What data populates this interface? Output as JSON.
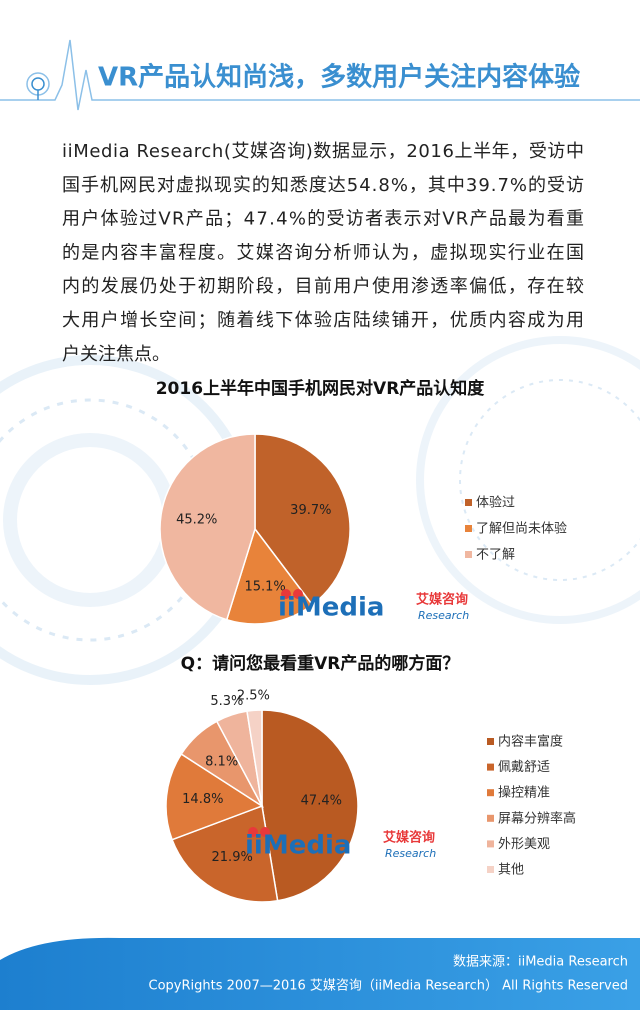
{
  "header": {
    "title": "VR产品认知尚浅，多数用户关注内容体验"
  },
  "paragraph": {
    "lines": [
      "iiMedia Research(艾媒咨询)数据显示，2016上半年，受访中",
      "国手机网民对虚拟现实的知悉度达54.8%，其中39.7%的受访",
      "用户体验过VR产品；47.4%的受访者表示对VR产品最为看重",
      "的是内容丰富程度。艾媒咨询分析师认为，虚拟现实行业在国",
      "内的发展仍处于初期阶段，目前用户使用渗透率偏低，存在较",
      "大用户增长空间；随着线下体验店陆续铺开，优质内容成为用",
      "户关注焦点。"
    ]
  },
  "logo": {
    "name": "iiMedia",
    "cn": "艾媒咨询",
    "sub": "Research"
  },
  "chart_data": [
    {
      "type": "pie",
      "title": "2016上半年中国手机网民对VR产品认知度",
      "categories": [
        "体验过",
        "了解但尚未体验",
        "不了解"
      ],
      "values": [
        39.7,
        15.1,
        45.2
      ],
      "value_labels": [
        "39.7%",
        "15.1%",
        "45.2%"
      ],
      "colors": [
        "#c0622a",
        "#e8833a",
        "#f0b7a0"
      ],
      "legend": "right"
    },
    {
      "type": "pie",
      "title": "Q：请问您最看重VR产品的哪方面？",
      "categories": [
        "内容丰富度",
        "佩戴舒适",
        "操控精准",
        "屏幕分辨率高",
        "外形美观",
        "其他"
      ],
      "values": [
        47.4,
        21.9,
        14.8,
        8.1,
        5.3,
        2.5
      ],
      "value_labels": [
        "47.4%",
        "21.9%",
        "14.8%",
        "8.1%",
        "5.3%",
        "2.5%"
      ],
      "colors": [
        "#b95a22",
        "#c9652b",
        "#e07a3a",
        "#e8966c",
        "#efb49c",
        "#f5d2c6"
      ],
      "legend": "right"
    }
  ],
  "footer": {
    "source": "数据来源：iiMedia Research",
    "copyright": "CopyRights 2007—2016 艾媒咨询（iiMedia Research） All Rights Reserved"
  }
}
